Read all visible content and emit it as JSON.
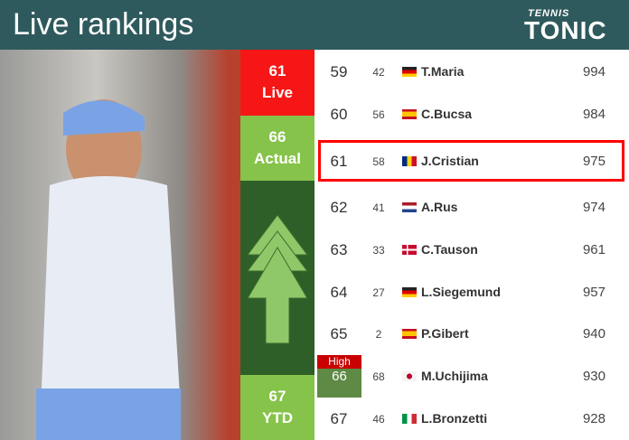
{
  "header": {
    "title": "Live rankings",
    "logo_top": "TENNIS",
    "logo_bottom": "TONIC"
  },
  "colors": {
    "header": "#2f5a5d",
    "live": "#f61616",
    "actual": "#86c34a",
    "arrow_bg": "#2f5f29",
    "highlight": "#ff0000",
    "high_badge": "#c80000"
  },
  "summary": {
    "live_rank": "61",
    "live_label": "Live",
    "actual_rank": "66",
    "actual_label": "Actual",
    "ytd_rank": "67",
    "ytd_label": "YTD",
    "trend_icon": "arrow-up-icon"
  },
  "career_high": {
    "label": "High",
    "value": "66"
  },
  "rows": [
    {
      "rank": "59",
      "prev": "42",
      "flag": "germany",
      "name": "T.Maria",
      "points": "994"
    },
    {
      "rank": "60",
      "prev": "56",
      "flag": "spain",
      "name": "C.Bucsa",
      "points": "984"
    },
    {
      "rank": "61",
      "prev": "58",
      "flag": "romania",
      "name": "J.Cristian",
      "points": "975",
      "highlighted": true
    },
    {
      "rank": "62",
      "prev": "41",
      "flag": "netherlands",
      "name": "A.Rus",
      "points": "974"
    },
    {
      "rank": "63",
      "prev": "33",
      "flag": "denmark",
      "name": "C.Tauson",
      "points": "961"
    },
    {
      "rank": "64",
      "prev": "27",
      "flag": "germany",
      "name": "L.Siegemund",
      "points": "957"
    },
    {
      "rank": "65",
      "prev": "2",
      "flag": "spain",
      "name": "P.Gibert",
      "points": "940"
    },
    {
      "rank": "66",
      "prev": "68",
      "flag": "japan",
      "name": "M.Uchijima",
      "points": "930"
    },
    {
      "rank": "67",
      "prev": "46",
      "flag": "italy",
      "name": "L.Bronzetti",
      "points": "928"
    }
  ]
}
